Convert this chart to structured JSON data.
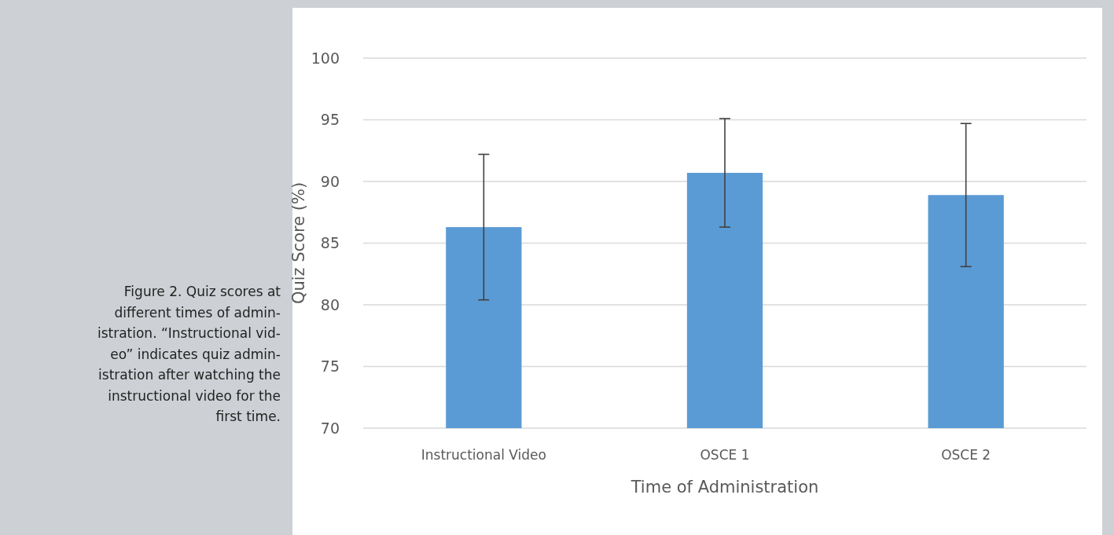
{
  "chart_data": {
    "type": "bar",
    "xlabel": "Time of Administration",
    "ylabel": "Quiz Score (%)",
    "categories": [
      "Instructional Video",
      "OSCE 1",
      "OSCE 2"
    ],
    "values": [
      86.3,
      90.7,
      88.9
    ],
    "errors": [
      5.9,
      4.4,
      5.8
    ],
    "color": "#5b9bd5",
    "ylim": [
      70,
      100
    ],
    "yticks": [
      70,
      75,
      80,
      85,
      90,
      95,
      100
    ],
    "grid": "y",
    "annotations": [
      "Figure 2. Quiz scores at\ndifferent times of admin-\nistration. “Instructional vid-\neo” indicates quiz admin-\nistration after watching the\ninstructional video for the\nfirst time."
    ]
  }
}
